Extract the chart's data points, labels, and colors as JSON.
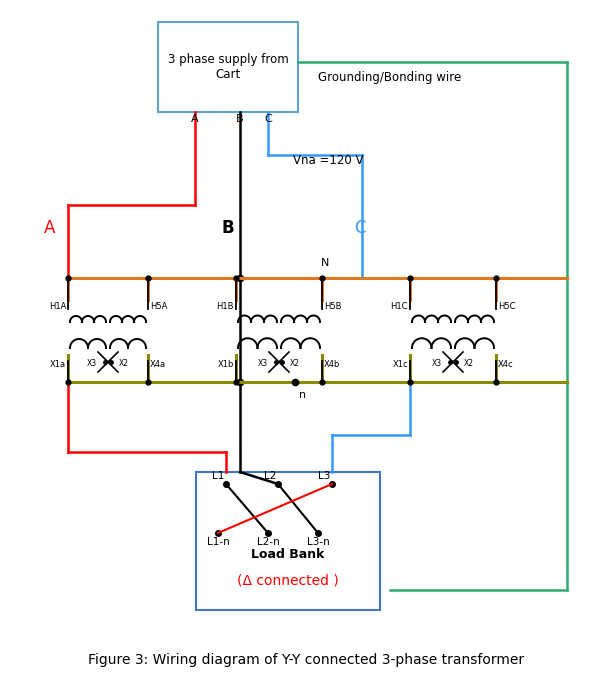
{
  "title": "Figure 3: Wiring diagram of Y-Y connected 3-phase transformer",
  "supply_box_text": "3 phase supply from\nCart",
  "grounding_text": "Grounding/Bonding wire",
  "vna_text": "Vna =120 V",
  "label_A": "A",
  "label_B": "B",
  "label_C": "C",
  "label_N": "N",
  "label_n": "n",
  "delta_text": "(Δ connected )",
  "load_bank_text": "Load Bank",
  "supply_box_color": "#5BA3C9",
  "grounding_color": "#2EAA6E",
  "orange_bar_color": "#E07820",
  "olive_bar_color": "#8B8B00",
  "load_box_color": "#4472C4",
  "red_wire_color": "#FF0000",
  "blue_wire_color": "#3399FF",
  "black_wire_color": "#000000",
  "fig_width": 6.12,
  "fig_height": 7.0,
  "dpi": 100
}
